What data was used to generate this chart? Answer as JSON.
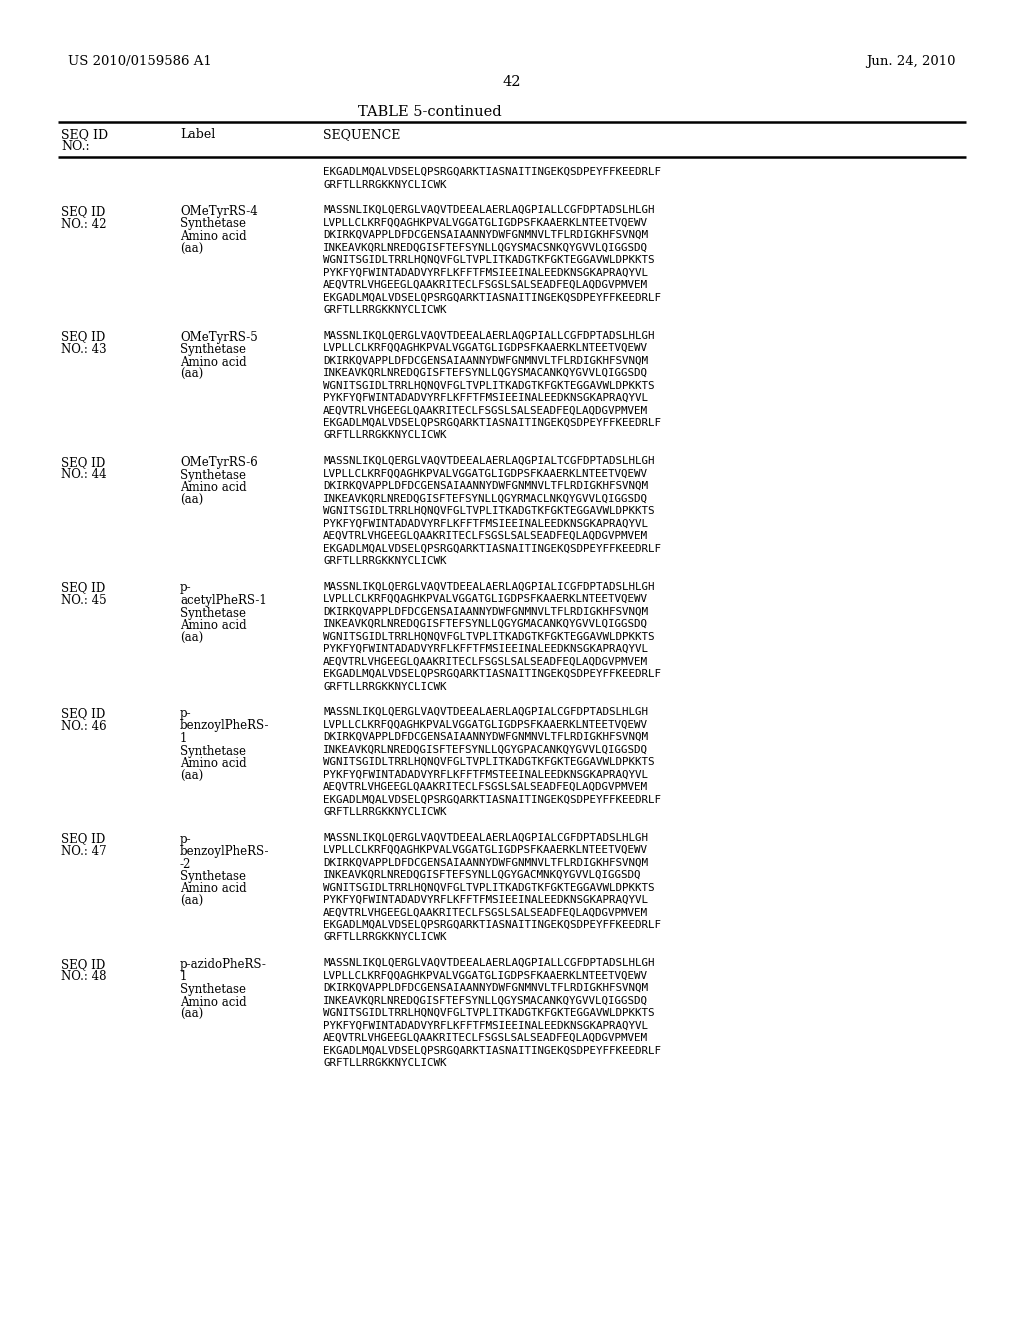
{
  "background_color": "#ffffff",
  "header_left": "US 2010/0159586 A1",
  "header_right": "Jun. 24, 2010",
  "page_number": "42",
  "table_title": "TABLE 5-continued",
  "entries": [
    {
      "seq_id": "",
      "no": "",
      "label_lines": [],
      "sequence_lines": [
        "EKGADLMQALVDSELQPSRGQARKTIASNAITINGEKQSDPEYFFKEEDRLF",
        "GRFTLLRRGKKNYCLICWK"
      ]
    },
    {
      "seq_id": "SEQ ID",
      "no": "NO.: 42",
      "label_lines": [
        "OMeTyrRS-4",
        "Synthetase",
        "Amino acid",
        "(aa)"
      ],
      "sequence_lines": [
        "MASSNLIKQLQERGLVAQVTDEEALAERLAQGPIALLCGFDPTADSLHLGH",
        "LVPLLCLKRFQQAGHKPVALVGGATGLIGDPSFKAAERKLNTEETVQEWV",
        "DKIRKQVAPPLDFDCGENSAIAANNYDWFGNMNVLTFLRDIGKHFSVNQM",
        "INKEAVKQRLNREDQGISFTEFSYNLLQGYSMACSNKQYGVVLQIGGSDQ",
        "WGNITSGIDLTRRLHQNQVFGLTVPLITKADGTKFGKTEGGAVWLDPKKTS",
        "PYKFYQFWINTADADVYRFLKFFTFMSIEEINALEEDKNSGKAPRAQYVL",
        "AEQVTRLVHGEEGLQAAKRITECLFSGSLSALSEADFEQLAQDGVPMVEM",
        "EKGADLMQALVDSELQPSRGQARKTIASNAITINGEKQSDPEYFFKEEDRLF",
        "GRFTLLRRGKKNYCLICWK"
      ]
    },
    {
      "seq_id": "SEQ ID",
      "no": "NO.: 43",
      "label_lines": [
        "OMeTyrRS-5",
        "Synthetase",
        "Amino acid",
        "(aa)"
      ],
      "sequence_lines": [
        "MASSNLIKQLQERGLVAQVTDEEALAERLAQGPIALLCGFDPTADSLHLGH",
        "LVPLLCLKRFQQAGHKPVALVGGATGLIGDPSFKAAERKLNTEETVQEWV",
        "DKIRKQVAPPLDFDCGENSAIAANNYDWFGNMNVLTFLRDIGKHFSVNQM",
        "INKEAVKQRLNREDQGISFTEFSYNLLQGYSMACANKQYGVVLQIGGSDQ",
        "WGNITSGIDLTRRLHQNQVFGLTVPLITKADGTKFGKTEGGAVWLDPKKTS",
        "PYKFYQFWINTADADVYRFLKFFTFMSIEEINALEEDKNSGKAPRAQYVL",
        "AEQVTRLVHGEEGLQAAKRITECLFSGSLSALSEADFEQLAQDGVPMVEM",
        "EKGADLMQALVDSELQPSRGQARKTIASNAITINGEKQSDPEYFFKEEDRLF",
        "GRFTLLRRGKKNYCLICWK"
      ]
    },
    {
      "seq_id": "SEQ ID",
      "no": "NO.: 44",
      "label_lines": [
        "OMeTyrRS-6",
        "Synthetase",
        "Amino acid",
        "(aa)"
      ],
      "sequence_lines": [
        "MASSNLIKQLQERGLVAQVTDEEALAERLAQGPIALTCGFDPTADSLHLGH",
        "LVPLLCLKRFQQAGHKPVALVGGATGLIGDPSFKAAERKLNTEETVQEWV",
        "DKIRKQVAPPLDFDCGENSAIAANNYDWFGNMNVLTFLRDIGKHFSVNQM",
        "INKEAVKQRLNREDQGISFTEFSYNLLQGYRMACLNKQYGVVLQIGGSDQ",
        "WGNITSGIDLTRRLHQNQVFGLTVPLITKADGTKFGKTEGGAVWLDPKKTS",
        "PYKFYQFWINTADADVYRFLKFFTFMSIEEINALEEDKNSGKAPRAQYVL",
        "AEQVTRLVHGEEGLQAAKRITECLFSGSLSALSEADFEQLAQDGVPMVEM",
        "EKGADLMQALVDSELQPSRGQARKTIASNAITINGEKQSDPEYFFKEEDRLF",
        "GRFTLLRRGKKNYCLICWK"
      ]
    },
    {
      "seq_id": "SEQ ID",
      "no": "NO.: 45",
      "label_lines": [
        "p-",
        "acetylPheRS-1",
        "Synthetase",
        "Amino acid",
        "(aa)"
      ],
      "sequence_lines": [
        "MASSNLIKQLQERGLVAQVTDEEALAERLAQGPIALICGFDPTADSLHLGH",
        "LVPLLCLKRFQQAGHKPVALVGGATGLIGDPSFKAAERKLNTEETVQEWV",
        "DKIRKQVAPPLDFDCGENSAIAANNYDWFGNMNVLTFLRDIGKHFSVNQM",
        "INKEAVKQRLNREDQGISFTEFSYNLLQGYGMACANKQYGVVLQIGGSDQ",
        "WGNITSGIDLTRRLHQNQVFGLTVPLITKADGTKFGKTEGGAVWLDPKKTS",
        "PYKFYQFWINTADADVYRFLKFFTFMSIEEINALEEDKNSGKAPRAQYVL",
        "AEQVTRLVHGEEGLQAAKRITECLFSGSLSALSEADFEQLAQDGVPMVEM",
        "EKGADLMQALVDSELQPSRGQARKTIASNAITINGEKQSDPEYFFKEEDRLF",
        "GRFTLLRRGKKNYCLICWK"
      ]
    },
    {
      "seq_id": "SEQ ID",
      "no": "NO.: 46",
      "label_lines": [
        "p-",
        "benzoylPheRS-",
        "1",
        "Synthetase",
        "Amino acid",
        "(aa)"
      ],
      "sequence_lines": [
        "MASSNLIKQLQERGLVAQVTDEEALAERLAQGPIALCGFDPTADSLHLGH",
        "LVPLLCLKRFQQAGHKPVALVGGATGLIGDPSFKAAERKLNTEETVQEWV",
        "DKIRKQVAPPLDFDCGENSAIAANNYDWFGNMNVLTFLRDIGKHFSVNQM",
        "INKEAVKQRLNREDQGISFTEFSYNLLQGYGPACANKQYGVVLQIGGSDQ",
        "WGNITSGIDLTRRLHQNQVFGLTVPLITKADGTKFGKTEGGAVWLDPKKTS",
        "PYKFYQFWINTADADVYRFLKFFTFMSTEEINALEEDKNSGKAPRAQYVL",
        "AEQVTRLVHGEEGLQAAKRITECLFSGSLSALSEADFEQLAQDGVPMVEM",
        "EKGADLMQALVDSELQPSRGQARKTIASNAITINGEKQSDPEYFFKEEDRLF",
        "GRFTLLRRGKKNYCLICWK"
      ]
    },
    {
      "seq_id": "SEQ ID",
      "no": "NO.: 47",
      "label_lines": [
        "p-",
        "benzoylPheRS-",
        "-2",
        "Synthetase",
        "Amino acid",
        "(aa)"
      ],
      "sequence_lines": [
        "MASSNLIKQLQERGLVAQVTDEEALAERLAQGPIALCGFDPTADSLHLGH",
        "LVPLLCLKRFQQAGHKPVALVGGATGLIGDPSFKAAERKLNTEETVQEWV",
        "DKIRKQVAPPLDFDCGENSAIAANNYDWFGNMNVLTFLRDIGKHFSVNQM",
        "INKEAVKQRLNREDQGISFTEFSYNLLQGYGACMNKQYGVVLQIGGSDQ",
        "WGNITSGIDLTRRLHQNQVFGLTVPLITKADGTKFGKTEGGAVWLDPKKTS",
        "PYKFYQFWINTADADVYRFLKFFTFMSIEEINALEEDKNSGKAPRAQYVL",
        "AEQVTRLVHGEEGLQAAKRITECLFSGSLSALSEADFEQLAQDGVPMVEM",
        "EKGADLMQALVDSELQPSRGQARKTIASNAITINGEKQSDPEYFFKEEDRLF",
        "GRFTLLRRGKKNYCLICWK"
      ]
    },
    {
      "seq_id": "SEQ ID",
      "no": "NO.: 48",
      "label_lines": [
        "p-azidoPheRS-",
        "1",
        "Synthetase",
        "Amino acid",
        "(aa)"
      ],
      "sequence_lines": [
        "MASSNLIKQLQERGLVAQVTDEEALAERLAQGPIALLCGFDPTADSLHLGH",
        "LVPLLCLKRFQQAGHKPVALVGGATGLIGDPSFKAAERKLNTEETVQEWV",
        "DKIRKQVAPPLDFDCGENSAIAANNYDWFGNMNVLTFLRDIGKHFSVNQM",
        "INKEAVKQRLNREDQGISFTEFSYNLLQGYSMACANKQYGVVLQIGGSDQ",
        "WGNITSGIDLTRRLHQNQVFGLTVPLITKADGTKFGKTEGGAVWLDPKKTS",
        "PYKFYQFWINTADADVYRFLKFFTFMSIEEINALEEDKNSGKAPRAQYVL",
        "AEQVTRLVHGEEGLQAAKRITECLFSGSLSALSEADFEQLAQDGVPMVEM",
        "EKGADLMQALVDSELQPSRGQARKTIASNAITINGEKQSDPEYFFKEEDRLF",
        "GRFTLLRRGKKNYCLICWK"
      ]
    }
  ]
}
